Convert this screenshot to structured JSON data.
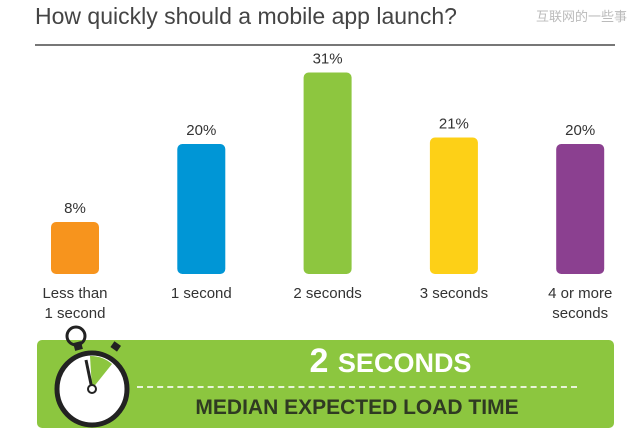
{
  "chart_data": {
    "type": "bar",
    "title": "How quickly should a mobile app launch?",
    "categories": [
      "Less than\n1 second",
      "1 second",
      "2 seconds",
      "3 seconds",
      "4 or more\nseconds"
    ],
    "values": [
      8,
      20,
      31,
      21,
      20
    ],
    "data_labels": [
      "8%",
      "20%",
      "31%",
      "21%",
      "20%"
    ],
    "colors": [
      "#f7941d",
      "#0096d6",
      "#8dc63f",
      "#fdd017",
      "#8b4090"
    ],
    "ylim": [
      0,
      35
    ],
    "grid": false
  },
  "watermark": "互联网的一些事",
  "banner": {
    "number": "2",
    "unit": "SECONDS",
    "subtitle": "MEDIAN EXPECTED LOAD TIME",
    "icon": "stopwatch-icon",
    "color": "#8cc63f"
  }
}
